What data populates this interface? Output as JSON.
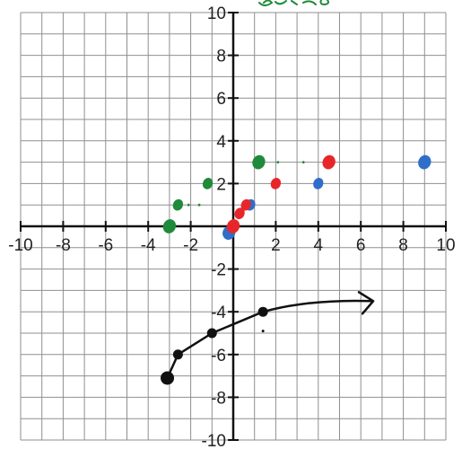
{
  "chart_data": {
    "type": "scatter",
    "title": "",
    "xlabel": "",
    "ylabel": "",
    "xlim": [
      -10,
      10
    ],
    "ylim": [
      -10,
      10
    ],
    "grid": true,
    "grid_step": 1,
    "tick_step": 2,
    "x_tick_labels": [
      "-10",
      "-8",
      "-6",
      "-4",
      "-2",
      "2",
      "4",
      "6",
      "8",
      "10"
    ],
    "y_tick_labels": [
      "10",
      "8",
      "6",
      "4",
      "2",
      "-2",
      "-4",
      "-6",
      "-8",
      "-10"
    ],
    "series": [
      {
        "color": "#2f6ec9",
        "style": "points",
        "points": [
          [
            -0.2,
            -0.3
          ],
          [
            0.8,
            1
          ],
          [
            4,
            2
          ],
          [
            9,
            3
          ]
        ]
      },
      {
        "color": "#e8262a",
        "style": "points",
        "points": [
          [
            0,
            0
          ],
          [
            0.3,
            0.6
          ],
          [
            0.6,
            1
          ],
          [
            2,
            2
          ],
          [
            4.5,
            3
          ]
        ]
      },
      {
        "color": "#1f8a3a",
        "style": "points",
        "points": [
          [
            -3,
            0
          ],
          [
            -2.6,
            1
          ],
          [
            -1.2,
            2
          ],
          [
            1.2,
            3
          ]
        ],
        "dotted_trail": [
          [
            -2.1,
            1
          ],
          [
            -1.6,
            1
          ],
          [
            2.1,
            3
          ],
          [
            3.3,
            3
          ]
        ]
      },
      {
        "color": "#111111",
        "style": "curve-with-arrow",
        "points": [
          [
            -3.1,
            -7.1
          ],
          [
            -2.6,
            -6
          ],
          [
            -1,
            -5
          ],
          [
            1.4,
            -4
          ]
        ],
        "curve_to": [
          6.5,
          -3.5
        ]
      }
    ]
  }
}
